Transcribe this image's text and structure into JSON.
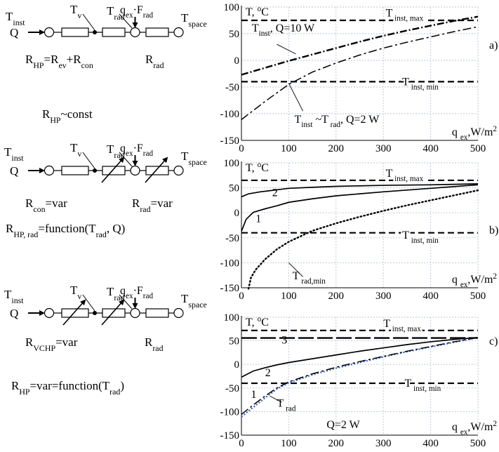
{
  "schematics": [
    {
      "id": "a",
      "labels": {
        "t_inst_main": "T",
        "t_inst_sub": "inst",
        "q": "Q",
        "t_v_main": "T",
        "t_v_sub": "v",
        "t_rad_main": "T",
        "t_rad_sub": "rad",
        "qf_q": "q",
        "qf_q_sub": "ex",
        "qf_f": "·F",
        "qf_f_sub": "rad",
        "t_space_main": "T",
        "t_space_sub": "space",
        "eq1_main": "R",
        "eq1_main_sub": "HP",
        "eq1_mid": "=R",
        "eq1_mid_sub": "ev",
        "eq1_plus": "+R",
        "eq1_plus_sub": "con",
        "r_rad_main": "R",
        "r_rad_sub": "rad",
        "eq2_main": "R",
        "eq2_sub": "HP",
        "eq2_rest": "~const"
      }
    },
    {
      "id": "b",
      "labels": {
        "t_inst_main": "T",
        "t_inst_sub": "inst",
        "q": "Q",
        "t_v_main": "T",
        "t_v_sub": "v",
        "t_rad_main": "T",
        "t_rad_sub": "rad",
        "qf_q": "q",
        "qf_q_sub": "ex",
        "qf_f": "·F",
        "qf_f_sub": "rad",
        "t_space_main": "T",
        "t_space_sub": "space",
        "r_con_main": "R",
        "r_con_sub": "con",
        "r_con_rest": "=var",
        "r_rad_main": "R",
        "r_rad_sub": "rad",
        "r_rad_rest": "=var",
        "eq_main": "R",
        "eq_sub": "HP, rad",
        "eq_rest": "=function(T",
        "eq_t_sub": "rad",
        "eq_end": ", Q)"
      }
    },
    {
      "id": "c",
      "labels": {
        "t_inst_main": "T",
        "t_inst_sub": "inst",
        "q": "Q",
        "t_v_main": "T",
        "t_v_sub": "v",
        "t_rad_main": "T",
        "t_rad_sub": "rad",
        "qf_q": "q",
        "qf_q_sub": "ex",
        "qf_f": "·F",
        "qf_f_sub": "rad",
        "t_space_main": "T",
        "t_space_sub": "space",
        "r_vchp_main": "R",
        "r_vchp_sub": "VCHP",
        "r_vchp_rest": "=var",
        "r_rad_main": "R",
        "r_rad_sub": "rad",
        "eq_main": "R",
        "eq_sub": "HP",
        "eq_rest": "=var=function(T",
        "eq_t_sub": "rad",
        "eq_end": ")"
      }
    }
  ],
  "chart_data": [
    {
      "id": "a",
      "type": "line",
      "panel_label": "a)",
      "ylabel_main": "T, ",
      "ylabel_deg": "o",
      "ylabel_unit": "C",
      "xlabel_main": "q ",
      "xlabel_sub": "ex",
      "xlabel_unit": ",W/m",
      "xlabel_sup": "2",
      "xlim": [
        0,
        500
      ],
      "ylim": [
        -150,
        100
      ],
      "xticks": [
        "0",
        "100",
        "200",
        "300",
        "400",
        "500"
      ],
      "yticks": [
        "100",
        "50",
        "0",
        "-50",
        "-100",
        "-150"
      ],
      "grid": true,
      "series": [
        {
          "key": "tmax",
          "style": "dash-heavy",
          "x": [
            0,
            500
          ],
          "y": [
            75,
            75
          ]
        },
        {
          "key": "tmin",
          "style": "dash-heavy",
          "x": [
            0,
            500
          ],
          "y": [
            -40,
            -40
          ]
        },
        {
          "key": "tinst",
          "style": "dashdot-heavy",
          "x": [
            0,
            50,
            100,
            150,
            200,
            250,
            300,
            350,
            400,
            450,
            500
          ],
          "y": [
            -27,
            -14,
            -1,
            11,
            23,
            35,
            46,
            56,
            65,
            74,
            82
          ]
        },
        {
          "key": "trad",
          "style": "dashdot",
          "x": [
            0,
            50,
            100,
            150,
            200,
            250,
            300,
            350,
            400,
            450,
            500
          ],
          "y": [
            -111,
            -77,
            -45,
            -22,
            -5,
            10,
            23,
            34,
            44,
            54,
            63
          ]
        }
      ],
      "annotations": [
        {
          "key": "tmax",
          "parts": [
            "T",
            " inst, max"
          ]
        },
        {
          "key": "tmin",
          "parts": [
            "T",
            " inst, min"
          ]
        },
        {
          "key": "tinst",
          "parts": [
            "T",
            "inst",
            ", Q=10 W"
          ]
        },
        {
          "key": "trad",
          "parts": [
            "T",
            "inst",
            " ~T",
            " rad",
            ", Q=2 W"
          ]
        }
      ]
    },
    {
      "id": "b",
      "type": "line",
      "panel_label": "b)",
      "ylabel_main": "T, ",
      "ylabel_deg": "o",
      "ylabel_unit": "C",
      "xlabel_main": "q ",
      "xlabel_sub": "ex",
      "xlabel_unit": ",W/m",
      "xlabel_sup": "2",
      "xlim": [
        0,
        500
      ],
      "ylim": [
        -150,
        100
      ],
      "xticks": [
        "0",
        "100",
        "200",
        "300",
        "400",
        "500"
      ],
      "yticks": [
        "100",
        "50",
        "0",
        "-50",
        "-100",
        "-150"
      ],
      "grid": true,
      "series": [
        {
          "key": "tmax",
          "style": "dash-heavy",
          "x": [
            0,
            500
          ],
          "y": [
            65,
            65
          ]
        },
        {
          "key": "tmin",
          "style": "dash-heavy",
          "x": [
            0,
            500
          ],
          "y": [
            -40,
            -40
          ]
        },
        {
          "key": "curve2",
          "style": "solid",
          "x": [
            0,
            15,
            40,
            75,
            100,
            150,
            200,
            300,
            400,
            500
          ],
          "y": [
            32,
            38,
            42,
            46,
            49,
            51,
            53,
            55,
            56,
            58
          ]
        },
        {
          "key": "curve1",
          "style": "solid",
          "x": [
            0,
            10,
            25,
            50,
            75,
            100,
            150,
            200,
            300,
            400,
            500
          ],
          "y": [
            -37,
            -13,
            1,
            8,
            14,
            21,
            28,
            34,
            42,
            49,
            56
          ]
        },
        {
          "key": "tradmin",
          "style": "dotted",
          "x": [
            15,
            20,
            30,
            50,
            75,
            100,
            150,
            200,
            250,
            300,
            350,
            400,
            450,
            500
          ],
          "y": [
            -152,
            -130,
            -114,
            -93,
            -73,
            -58,
            -36,
            -21,
            -8,
            4,
            15,
            25,
            35,
            45
          ]
        }
      ],
      "annotations": [
        {
          "key": "tmax",
          "parts": [
            "T",
            " inst, max"
          ]
        },
        {
          "key": "tmin",
          "parts": [
            "T",
            " inst, min"
          ]
        },
        {
          "key": "curve2",
          "parts": [
            "2"
          ]
        },
        {
          "key": "curve1",
          "parts": [
            "1"
          ]
        },
        {
          "key": "tradmin",
          "parts": [
            "T",
            " rad,min"
          ]
        }
      ]
    },
    {
      "id": "c",
      "type": "line",
      "panel_label": "c)",
      "ylabel_main": "T, ",
      "ylabel_deg": "o",
      "ylabel_unit": "C",
      "xlabel_main": "q ",
      "xlabel_sub": "ex",
      "xlabel_unit": ",W/m",
      "xlabel_sup": "2",
      "xlim": [
        0,
        500
      ],
      "ylim": [
        -150,
        100
      ],
      "xticks": [
        "0",
        "100",
        "200",
        "300",
        "400",
        "500"
      ],
      "yticks": [
        "100",
        "50",
        "0",
        "-50",
        "-100",
        "-150"
      ],
      "grid": true,
      "series": [
        {
          "key": "tmax",
          "style": "dash-heavy",
          "x": [
            0,
            500
          ],
          "y": [
            72,
            72
          ]
        },
        {
          "key": "tmin",
          "style": "dash-heavy",
          "x": [
            0,
            500
          ],
          "y": [
            -40,
            -40
          ]
        },
        {
          "key": "curve3",
          "style": "longdash-heavy",
          "x": [
            0,
            500
          ],
          "y": [
            56,
            56
          ]
        },
        {
          "key": "curve2",
          "style": "solid",
          "x": [
            0,
            25,
            50,
            75,
            100,
            150,
            200,
            250,
            300,
            350,
            400,
            450,
            500
          ],
          "y": [
            -27,
            -14,
            -7,
            -1,
            4,
            12,
            20,
            28,
            35,
            42,
            48,
            53,
            57
          ]
        },
        {
          "key": "trad",
          "style": "dotted-blue",
          "x": [
            0,
            25,
            50,
            75,
            100,
            150,
            200,
            250,
            300,
            350,
            400,
            450,
            500
          ],
          "y": [
            -111,
            -91,
            -71,
            -52,
            -39,
            -22,
            -8,
            4,
            16,
            27,
            37,
            47,
            57
          ]
        },
        {
          "key": "curve1",
          "style": "dashdot",
          "x": [
            0,
            25,
            50,
            75,
            100,
            150,
            200,
            250,
            300,
            350,
            400,
            450,
            500
          ],
          "y": [
            -106,
            -86,
            -67,
            -50,
            -37,
            -20,
            -6,
            6,
            17,
            28,
            38,
            48,
            57
          ]
        }
      ],
      "annotations": [
        {
          "key": "tmax",
          "parts": [
            "T",
            " inst, max"
          ]
        },
        {
          "key": "tmin",
          "parts": [
            "T",
            " inst, min"
          ]
        },
        {
          "key": "curve3",
          "parts": [
            "3"
          ]
        },
        {
          "key": "curve2",
          "parts": [
            "2"
          ]
        },
        {
          "key": "curve1",
          "parts": [
            "1"
          ]
        },
        {
          "key": "trad",
          "parts": [
            "T",
            " rad"
          ]
        },
        {
          "key": "qnote",
          "parts": [
            "Q=2 W"
          ]
        }
      ]
    }
  ]
}
